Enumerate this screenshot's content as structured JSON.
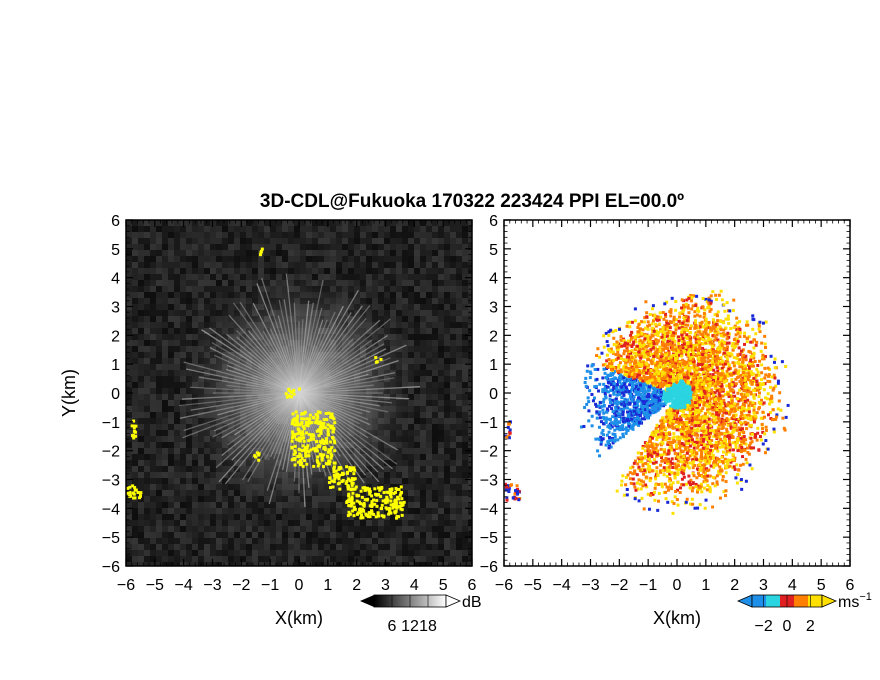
{
  "title": "3D-CDL@Fukuoka 170322 223424 PPI EL=00.0º",
  "colors": {
    "refl_background": "#1e1e1e",
    "refl_high": "#ffff00",
    "vel_neg_far": "#1a2bd6",
    "vel_neg": "#1e8fe8",
    "vel_zero": "#2ad4e0",
    "vel_pos_low": "#e02020",
    "vel_pos": "#ff8000",
    "vel_pos_high": "#ffe000"
  },
  "chart_data": [
    {
      "type": "heatmap",
      "panel": "reflectivity",
      "xlabel": "X(km)",
      "ylabel": "Y(km)",
      "xlim": [
        -6,
        6
      ],
      "ylim": [
        -6,
        6
      ],
      "xticks": [
        "−6",
        "−5",
        "−4",
        "−3",
        "−2",
        "−1",
        "0",
        "1",
        "2",
        "3",
        "4",
        "5",
        "6"
      ],
      "yticks": [
        "6",
        "5",
        "4",
        "3",
        "2",
        "1",
        "0",
        "−1",
        "−2",
        "−3",
        "−4",
        "−5",
        "−6"
      ],
      "colorbar": {
        "unit": "dB",
        "ticks": [
          "6",
          "12",
          "18"
        ],
        "range": [
          0,
          24
        ]
      },
      "radar_origin": [
        0,
        0
      ],
      "beam_max_range_km": 4.2,
      "high_echo_regions": [
        {
          "x": [
            -5.9,
            -5.7
          ],
          "y": [
            -1.6,
            -0.9
          ]
        },
        {
          "x": [
            -6.0,
            -5.5
          ],
          "y": [
            -3.6,
            -3.1
          ]
        },
        {
          "x": [
            -1.6,
            -1.4
          ],
          "y": [
            -2.3,
            -1.9
          ]
        },
        {
          "x": [
            -1.4,
            -1.3
          ],
          "y": [
            4.8,
            5.1
          ]
        },
        {
          "x": [
            2.6,
            2.8
          ],
          "y": [
            1.1,
            1.3
          ]
        },
        {
          "x": [
            -0.5,
            0.0
          ],
          "y": [
            -0.1,
            0.2
          ]
        },
        {
          "x": [
            -0.3,
            1.2
          ],
          "y": [
            -2.5,
            -0.6
          ]
        },
        {
          "x": [
            1.0,
            1.9
          ],
          "y": [
            -3.3,
            -2.5
          ]
        },
        {
          "x": [
            1.6,
            3.6
          ],
          "y": [
            -4.3,
            -3.2
          ]
        }
      ]
    },
    {
      "type": "heatmap",
      "panel": "doppler velocity",
      "xlabel": "X(km)",
      "ylabel": "",
      "xlim": [
        -6,
        6
      ],
      "ylim": [
        -6,
        6
      ],
      "xticks": [
        "−6",
        "−5",
        "−4",
        "−3",
        "−2",
        "−1",
        "0",
        "1",
        "2",
        "3",
        "4",
        "5",
        "6"
      ],
      "colorbar": {
        "unit": "ms",
        "unit_exponent": "−1",
        "ticks": [
          "−2",
          "0",
          "2"
        ],
        "range": [
          -3,
          3
        ]
      },
      "radar_origin": [
        0,
        0
      ],
      "sectors": [
        {
          "sign": "negative",
          "az_from": 232,
          "az_to": 290,
          "r_max_km": 3.6
        },
        {
          "sign": "positive",
          "az_from": 290,
          "az_to": 360,
          "r_max_km": 3.5
        },
        {
          "sign": "positive",
          "az_from": 0,
          "az_to": 150,
          "r_max_km": 4.0
        },
        {
          "sign": "positive",
          "az_from": 150,
          "az_to": 215,
          "r_max_km": 4.3
        }
      ],
      "edge_regions": [
        {
          "x": [
            -6.0,
            -5.8
          ],
          "y": [
            -1.5,
            -0.9
          ],
          "value": 1.5
        },
        {
          "x": [
            -6.0,
            -5.5
          ],
          "y": [
            -3.7,
            -3.1
          ],
          "value": 1.0
        }
      ]
    }
  ]
}
